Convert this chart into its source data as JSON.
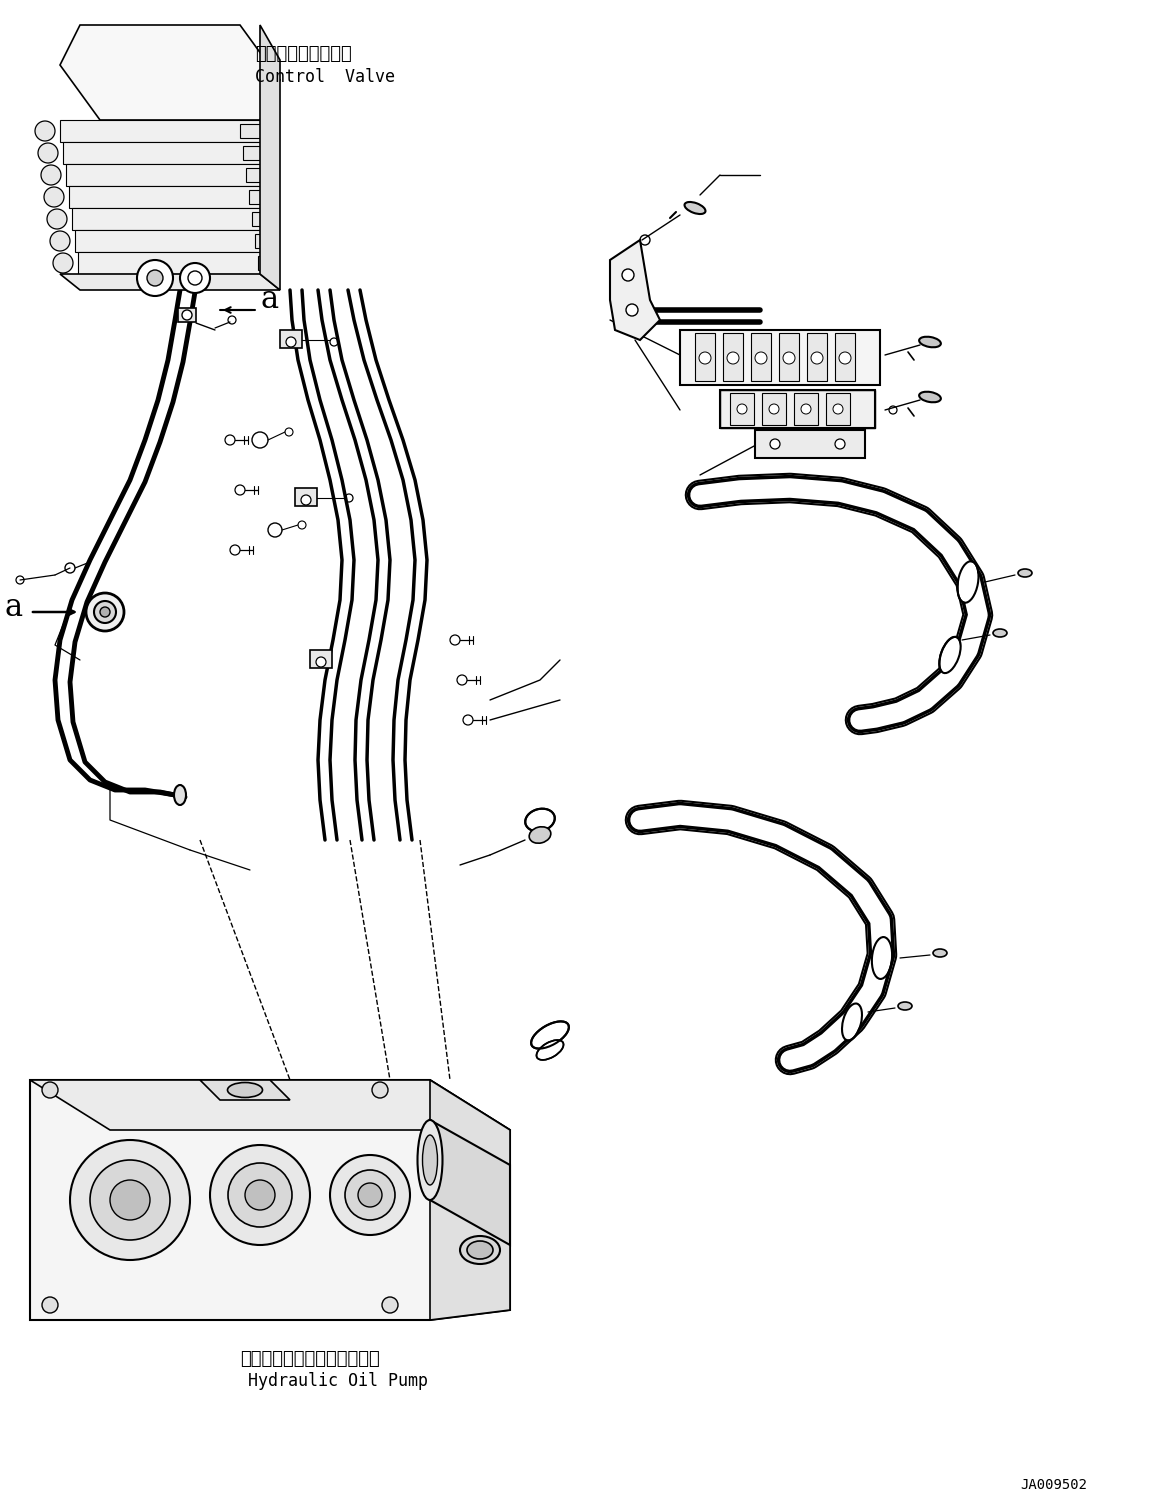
{
  "bg_color": "#ffffff",
  "line_color": "#000000",
  "title_ja": "コントロールバルブ",
  "title_en": "Control  Valve",
  "pump_ja": "ハイドロリックオイルポンプ",
  "pump_en": "Hydraulic Oil Pump",
  "label_a": "a",
  "part_number": "JA009502",
  "fig_width": 11.6,
  "fig_height": 14.91,
  "dpi": 100
}
